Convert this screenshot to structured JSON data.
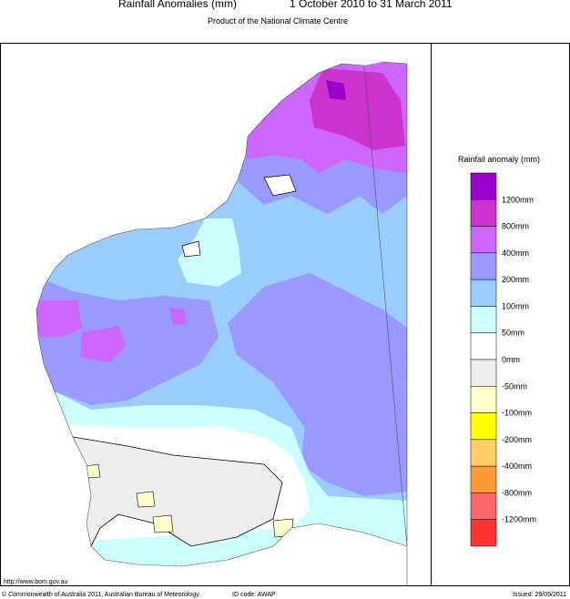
{
  "header": {
    "title": "Rainfall Anomalies (mm)",
    "period": "1 October 2010 to 31 March 2011",
    "subtitle": "Product of the National Climate Centre"
  },
  "legend": {
    "title": "Rainfall anomaly (mm)",
    "colors": [
      "#9900cc",
      "#cc33cc",
      "#cc66ff",
      "#9999ff",
      "#99ccff",
      "#ccffff",
      "#ffffff",
      "#eeeeee",
      "#ffffcc",
      "#ffff00",
      "#ffcc66",
      "#ff9933",
      "#ff6666",
      "#ff3333"
    ],
    "labels": [
      "1200mm",
      "800mm",
      "400mm",
      "200mm",
      "100mm",
      "50mm",
      "0mm",
      "-50mm",
      "-100mm",
      "-200mm",
      "-400mm",
      "-800mm",
      "-1200mm"
    ]
  },
  "footer": {
    "url": "http://www.bom.gov.au",
    "copyright": "© Commonwealth of Australia 2011, Australian Bureau of Meteorology",
    "id_code": "ID code: AWAP",
    "issued": "Issued: 29/09/2011"
  }
}
